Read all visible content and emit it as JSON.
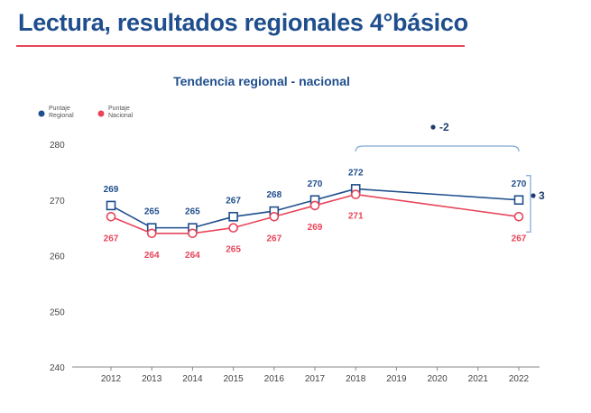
{
  "page": {
    "title": "Lectura, resultados regionales 4°básico"
  },
  "colors": {
    "regional": "#1f4e8c",
    "nacional": "#e8455a",
    "bracket": "#7ea6d8"
  },
  "chart_data": {
    "type": "line",
    "title": "Tendencia regional - nacional",
    "x": [
      "2012",
      "2013",
      "2014",
      "2015",
      "2016",
      "2017",
      "2018",
      "2019",
      "2020",
      "2021",
      "2022"
    ],
    "yticks": [
      240,
      250,
      260,
      270,
      280
    ],
    "ylim": [
      240,
      280
    ],
    "xlabel": "",
    "ylabel": "",
    "legend": [
      "Puntaje Regional",
      "Puntaje Nacional"
    ],
    "series": [
      {
        "name": "Puntaje Regional",
        "marker": "square",
        "x": [
          "2012",
          "2013",
          "2014",
          "2015",
          "2016",
          "2017",
          "2018",
          "2022"
        ],
        "values": [
          269,
          265,
          265,
          267,
          268,
          270,
          272,
          270
        ]
      },
      {
        "name": "Puntaje Nacional",
        "marker": "circle",
        "x": [
          "2012",
          "2013",
          "2014",
          "2015",
          "2016",
          "2017",
          "2018",
          "2022"
        ],
        "values": [
          267,
          264,
          264,
          265,
          267,
          269,
          271,
          267
        ]
      }
    ],
    "annotations": {
      "change_2018_2022": "-2",
      "gap_2022": "3"
    }
  }
}
